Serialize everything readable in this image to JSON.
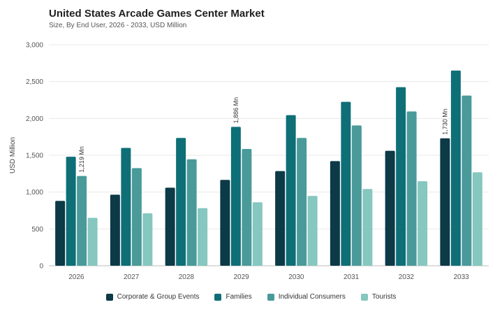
{
  "chart_data": {
    "type": "bar",
    "title": "United States Arcade Games Center Market",
    "subtitle": "Size, By End User, 2026 - 2033, USD Million",
    "ylabel": "USD Million",
    "xlabel": "",
    "ylim": [
      0,
      3000
    ],
    "yticks": [
      "0",
      "500",
      "1,000",
      "1,500",
      "2,000",
      "2,500",
      "3,000"
    ],
    "categories": [
      "2026",
      "2027",
      "2028",
      "2029",
      "2030",
      "2031",
      "2032",
      "2033"
    ],
    "series": [
      {
        "name": "Corporate & Group Events",
        "color": "#0c3a47",
        "values": [
          880,
          965,
          1060,
          1165,
          1285,
          1420,
          1560,
          1730
        ]
      },
      {
        "name": "Families",
        "color": "#0e6f77",
        "values": [
          1480,
          1600,
          1735,
          1886,
          2045,
          2225,
          2425,
          2650
        ]
      },
      {
        "name": "Individual Consumers",
        "color": "#4a9a9a",
        "values": [
          1219,
          1325,
          1445,
          1585,
          1735,
          1905,
          2095,
          2310
        ]
      },
      {
        "name": "Tourists",
        "color": "#86c7bf",
        "values": [
          650,
          712,
          782,
          862,
          948,
          1042,
          1148,
          1268
        ]
      }
    ],
    "annotations": [
      {
        "category": "2026",
        "series": 2,
        "label": "1,219 Mn"
      },
      {
        "category": "2029",
        "series": 1,
        "label": "1,886 Mn"
      },
      {
        "category": "2033",
        "series": 0,
        "label": "1,730 Mn"
      }
    ],
    "grid": true,
    "legend_position": "bottom"
  }
}
